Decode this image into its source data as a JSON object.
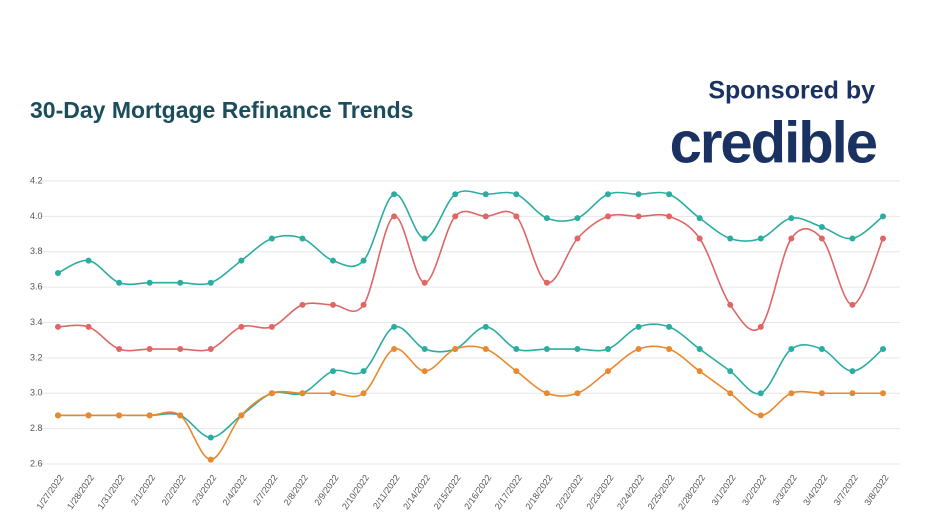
{
  "chart_data": {
    "type": "line",
    "title": "30-Day Mortgage Refinance Trends",
    "annotations": [
      "Sponsored by",
      "credible"
    ],
    "categories": [
      "1/27/2022",
      "1/28/2022",
      "1/31/2022",
      "2/1/2022",
      "2/2/2022",
      "2/3/2022",
      "2/4/2022",
      "2/7/2022",
      "2/8/2022",
      "2/9/2022",
      "2/10/2022",
      "2/11/2022",
      "2/14/2022",
      "2/15/2022",
      "2/16/2022",
      "2/17/2022",
      "2/18/2022",
      "2/22/2022",
      "2/23/2022",
      "2/24/2022",
      "2/25/2022",
      "2/28/2022",
      "3/1/2022",
      "3/2/2022",
      "3/3/2022",
      "3/4/2022",
      "3/7/2022",
      "3/8/2022"
    ],
    "series": [
      {
        "color": "#2bada0",
        "values": [
          3.68,
          3.75,
          3.625,
          3.625,
          3.625,
          3.625,
          3.75,
          3.875,
          3.875,
          3.75,
          3.75,
          4.125,
          3.875,
          4.125,
          4.125,
          4.125,
          3.99,
          3.99,
          4.125,
          4.125,
          4.125,
          3.99,
          3.875,
          3.875,
          3.99,
          3.94,
          3.875,
          4.0
        ]
      },
      {
        "color": "#e06666",
        "values": [
          3.375,
          3.375,
          3.25,
          3.25,
          3.25,
          3.25,
          3.375,
          3.375,
          3.5,
          3.5,
          3.5,
          4.0,
          3.625,
          4.0,
          4.0,
          4.0,
          3.625,
          3.875,
          4.0,
          4.0,
          4.0,
          3.875,
          3.5,
          3.375,
          3.875,
          3.875,
          3.5,
          3.875
        ]
      },
      {
        "color": "#2bada0",
        "values": [
          2.875,
          2.875,
          2.875,
          2.875,
          2.875,
          2.75,
          2.875,
          3.0,
          3.0,
          3.125,
          3.125,
          3.375,
          3.25,
          3.25,
          3.375,
          3.25,
          3.25,
          3.25,
          3.25,
          3.375,
          3.375,
          3.25,
          3.125,
          3.0,
          3.25,
          3.25,
          3.125,
          3.25
        ]
      },
      {
        "color": "#e8892f",
        "values": [
          2.875,
          2.875,
          2.875,
          2.875,
          2.875,
          2.625,
          2.875,
          3.0,
          3.0,
          3.0,
          3.0,
          3.25,
          3.125,
          3.25,
          3.25,
          3.125,
          3.0,
          3.0,
          3.125,
          3.25,
          3.25,
          3.125,
          3.0,
          2.875,
          3.0,
          3.0,
          3.0,
          3.0
        ]
      }
    ],
    "ylim": [
      2.6,
      4.2
    ],
    "yticks": [
      2.6,
      2.8,
      {
        "value": 3,
        "label": "3.0"
      },
      3.2,
      3.4,
      3.6,
      3.8,
      {
        "value": 4,
        "label": "4.0"
      },
      4.2
    ],
    "grid": true
  }
}
